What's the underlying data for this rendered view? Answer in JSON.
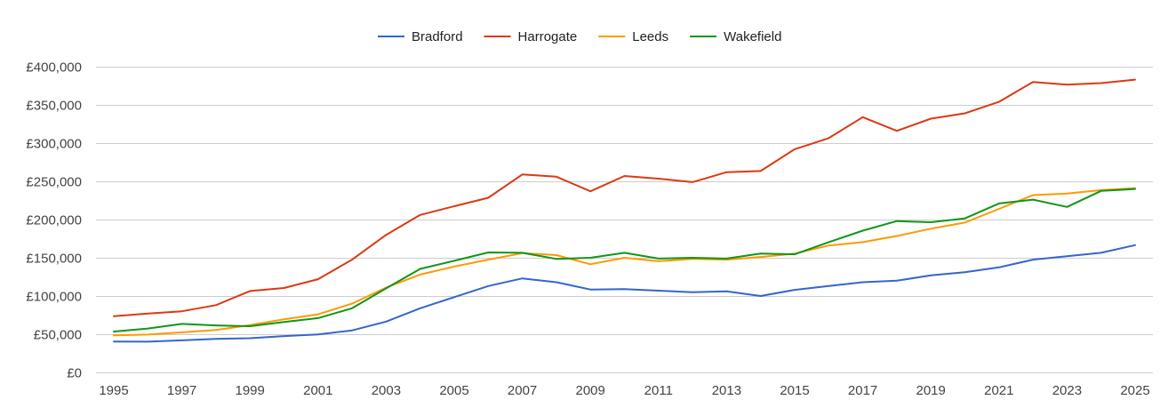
{
  "chart_data": {
    "type": "line",
    "title": "",
    "xlabel": "",
    "ylabel": "",
    "x": [
      1995,
      1996,
      1997,
      1998,
      1999,
      2000,
      2001,
      2002,
      2003,
      2004,
      2005,
      2006,
      2007,
      2008,
      2009,
      2010,
      2011,
      2012,
      2013,
      2014,
      2015,
      2016,
      2017,
      2018,
      2019,
      2020,
      2021,
      2022,
      2023,
      2024,
      2025
    ],
    "xticks": [
      1995,
      1997,
      1999,
      2001,
      2003,
      2005,
      2007,
      2009,
      2011,
      2013,
      2015,
      2017,
      2019,
      2021,
      2023,
      2025
    ],
    "ylim": [
      0,
      400000
    ],
    "yticks": [
      0,
      50000,
      100000,
      150000,
      200000,
      250000,
      300000,
      350000,
      400000
    ],
    "ytick_labels": [
      "£0",
      "£50,000",
      "£100,000",
      "£150,000",
      "£200,000",
      "£250,000",
      "£300,000",
      "£350,000",
      "£400,000"
    ],
    "grid": true,
    "legend_position": "top",
    "series": [
      {
        "name": "Bradford",
        "color": "#3366cc",
        "values": [
          40500,
          40200,
          42000,
          44000,
          44800,
          47500,
          49800,
          55000,
          66500,
          84000,
          98500,
          113000,
          123000,
          118000,
          108500,
          109000,
          107000,
          105000,
          106000,
          100000,
          108000,
          113000,
          118000,
          120000,
          127000,
          131000,
          137500,
          147500,
          152000,
          156500,
          166500
        ]
      },
      {
        "name": "Harrogate",
        "color": "#dc3912",
        "values": [
          73500,
          77000,
          80000,
          88000,
          106500,
          110500,
          122000,
          147500,
          180000,
          206000,
          217500,
          228500,
          259000,
          256000,
          237000,
          257000,
          253500,
          249000,
          262000,
          263500,
          292000,
          306500,
          334000,
          316000,
          332000,
          339000,
          354000,
          380000,
          376500,
          378500,
          383000
        ]
      },
      {
        "name": "Leeds",
        "color": "#ff9900",
        "values": [
          48500,
          49500,
          52500,
          55500,
          62000,
          69500,
          76000,
          90000,
          111000,
          128000,
          138500,
          147500,
          156000,
          153500,
          141500,
          150000,
          145500,
          148500,
          147500,
          151000,
          155500,
          166000,
          170500,
          178500,
          188000,
          196000,
          214000,
          232000,
          234000,
          238500,
          241000
        ]
      },
      {
        "name": "Wakefield",
        "color": "#109618",
        "values": [
          53500,
          57500,
          63500,
          61500,
          60500,
          66000,
          71000,
          84000,
          110000,
          135500,
          146000,
          157000,
          156500,
          148500,
          150000,
          156500,
          149000,
          150000,
          149000,
          155500,
          154500,
          170500,
          185500,
          198000,
          196500,
          201500,
          221000,
          226000,
          216500,
          237500,
          240000
        ]
      }
    ]
  }
}
